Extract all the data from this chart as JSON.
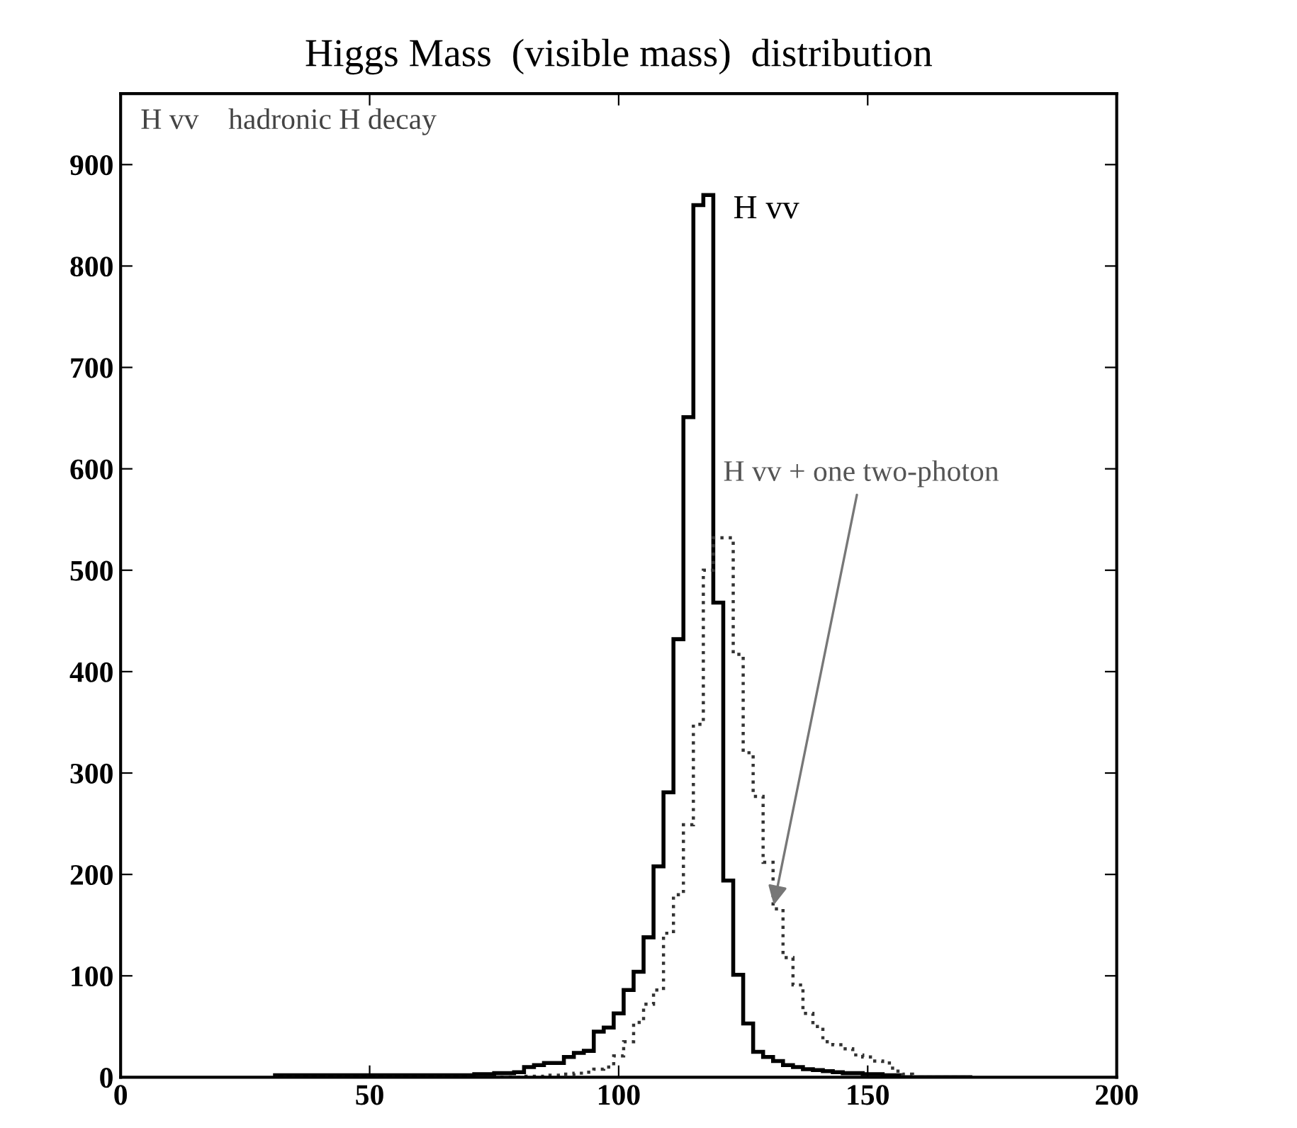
{
  "chart_data": {
    "type": "histogram",
    "title": "Higgs Mass  (visible mass)  distribution",
    "annotations": [
      "H vv    hadronic H decay"
    ],
    "bins": [
      31,
      33,
      35,
      37,
      39,
      41,
      43,
      45,
      47,
      49,
      51,
      53,
      55,
      57,
      59,
      61,
      63,
      65,
      67,
      69,
      71,
      73,
      75,
      77,
      79,
      81,
      83,
      85,
      87,
      89,
      91,
      93,
      95,
      97,
      99,
      101,
      103,
      105,
      107,
      109,
      111,
      113,
      115,
      117,
      119,
      121,
      123,
      125,
      127,
      129,
      131,
      133,
      135,
      137,
      139,
      141,
      143,
      145,
      147,
      149,
      151,
      153,
      155,
      157,
      159,
      161,
      163,
      165,
      167,
      169,
      171
    ],
    "series": [
      {
        "name": "H vv",
        "color": "#000000",
        "line_style": "solid",
        "values": [
          2,
          2,
          2,
          2,
          2,
          2,
          2,
          2,
          2,
          2,
          2,
          2,
          2,
          2,
          2,
          2,
          2,
          2,
          2,
          2,
          3,
          3,
          4,
          4,
          5,
          10,
          12,
          14,
          14,
          20,
          24,
          26,
          45,
          49,
          63,
          86,
          104,
          138,
          208,
          281,
          432,
          651,
          860,
          870,
          468,
          194,
          101,
          53,
          25,
          20,
          16,
          12,
          10,
          8,
          7,
          6,
          5,
          4,
          4,
          3,
          3,
          2,
          2,
          0,
          0,
          0,
          0,
          0,
          0,
          0
        ]
      },
      {
        "name": "H vv + one two-photon",
        "color": "#333333",
        "line_style": "dotted",
        "values": [
          0,
          0,
          0,
          0,
          0,
          0,
          0,
          0,
          0,
          0,
          0,
          0,
          0,
          0,
          0,
          0,
          0,
          0,
          0,
          0,
          0,
          0,
          0,
          0,
          0,
          1,
          1,
          2,
          2,
          3,
          4,
          5,
          8,
          10,
          21,
          35,
          54,
          72,
          86,
          142,
          180,
          249,
          348,
          500,
          532,
          532,
          417,
          320,
          277,
          212,
          166,
          118,
          91,
          63,
          50,
          35,
          32,
          28,
          22,
          20,
          16,
          14,
          6,
          3,
          0,
          0,
          0,
          0,
          0,
          0
        ]
      }
    ],
    "xlim": [
      0,
      200
    ],
    "ylim": [
      0,
      970
    ],
    "xticks": [
      0,
      50,
      100,
      150,
      200
    ],
    "yticks": [
      0,
      100,
      200,
      300,
      400,
      500,
      600,
      700,
      800,
      900
    ],
    "grid": false,
    "legend": false
  }
}
